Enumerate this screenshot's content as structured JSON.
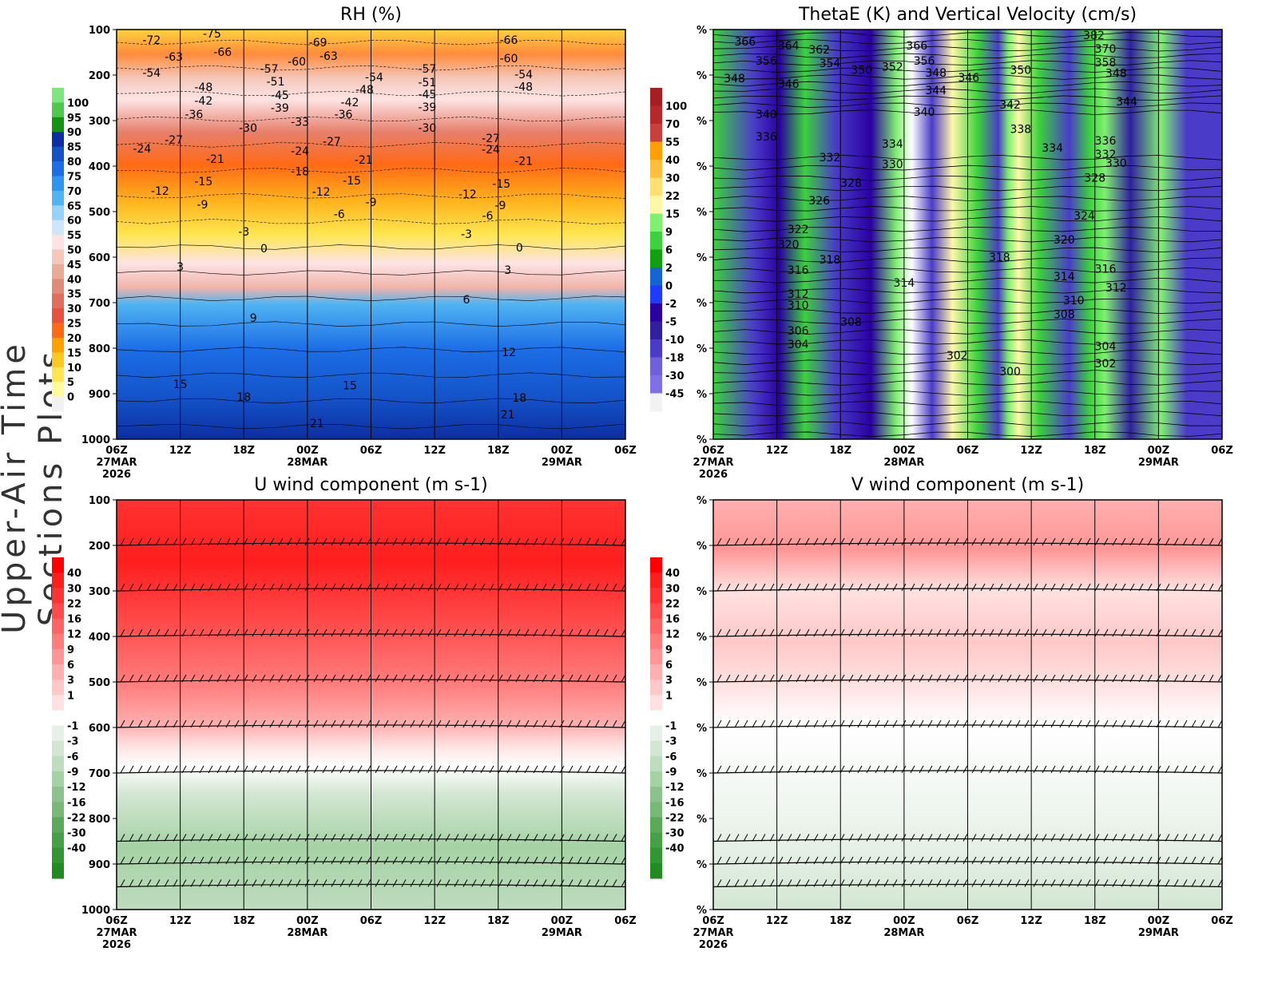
{
  "figure_title": "Upper-Air Time Sections Plots",
  "time_ticks": [
    "06Z",
    "12Z",
    "18Z",
    "00Z",
    "06Z",
    "12Z",
    "18Z",
    "00Z",
    "06Z"
  ],
  "date_labels": [
    {
      "tick": 0,
      "lines": [
        "27MAR",
        "2026"
      ]
    },
    {
      "tick": 3,
      "lines": [
        "28MAR"
      ]
    },
    {
      "tick": 7,
      "lines": [
        "29MAR"
      ]
    }
  ],
  "chart_data": [
    {
      "id": "rh",
      "type": "heatmap",
      "title": "RH (%)",
      "xlim_hours": [
        0,
        48
      ],
      "ylim_hPa": [
        1000,
        100
      ],
      "y_ticks": [
        "100",
        "200",
        "300",
        "400",
        "500",
        "600",
        "700",
        "800",
        "900",
        "1000"
      ],
      "colorbar": {
        "levels": [
          "100",
          "95",
          "90",
          "85",
          "80",
          "75",
          "70",
          "65",
          "60",
          "55",
          "50",
          "45",
          "40",
          "35",
          "30",
          "25",
          "20",
          "15",
          "10",
          "5",
          "0"
        ],
        "colors": [
          "#7ee67e",
          "#4ec84e",
          "#129612",
          "#0c2ea0",
          "#1452c8",
          "#1c6ee6",
          "#2c96f0",
          "#50b4f2",
          "#96d2fa",
          "#cde6fa",
          "#fde4e4",
          "#f5c8bc",
          "#ebaa98",
          "#e08c78",
          "#e0705c",
          "#e6523c",
          "#ff6a14",
          "#ffa200",
          "#ffc81e",
          "#ffe650",
          "#fffa9c",
          "#f2f2f2"
        ]
      },
      "contour_labels": [
        {
          "t": 3.3,
          "p": 123,
          "v": "-72"
        },
        {
          "t": 9,
          "p": 109,
          "v": "-75"
        },
        {
          "t": 19,
          "p": 128,
          "v": "-69"
        },
        {
          "t": 37,
          "p": 123,
          "v": "-66"
        },
        {
          "t": 5.4,
          "p": 160,
          "v": "-63"
        },
        {
          "t": 10,
          "p": 149,
          "v": "-66"
        },
        {
          "t": 20,
          "p": 158,
          "v": "-63"
        },
        {
          "t": 17,
          "p": 170,
          "v": "-60"
        },
        {
          "t": 37,
          "p": 163,
          "v": "-60"
        },
        {
          "t": 3.3,
          "p": 195,
          "v": "-54"
        },
        {
          "t": 14.4,
          "p": 186,
          "v": "-57"
        },
        {
          "t": 15,
          "p": 214,
          "v": "-51"
        },
        {
          "t": 24.3,
          "p": 204,
          "v": "-54"
        },
        {
          "t": 29.3,
          "p": 186,
          "v": "-57"
        },
        {
          "t": 29.3,
          "p": 216,
          "v": "-51"
        },
        {
          "t": 38.4,
          "p": 198,
          "v": "-54"
        },
        {
          "t": 8.2,
          "p": 226,
          "v": "-48"
        },
        {
          "t": 23.4,
          "p": 232,
          "v": "-48"
        },
        {
          "t": 38.4,
          "p": 225,
          "v": "-48"
        },
        {
          "t": 15.4,
          "p": 244,
          "v": "-45"
        },
        {
          "t": 29.3,
          "p": 242,
          "v": "-45"
        },
        {
          "t": 8.2,
          "p": 256,
          "v": "-42"
        },
        {
          "t": 22,
          "p": 260,
          "v": "-42"
        },
        {
          "t": 15.4,
          "p": 272,
          "v": "-39"
        },
        {
          "t": 29.3,
          "p": 270,
          "v": "-39"
        },
        {
          "t": 7.3,
          "p": 286,
          "v": "-36"
        },
        {
          "t": 21.4,
          "p": 286,
          "v": "-36"
        },
        {
          "t": 17.3,
          "p": 303,
          "v": "-33"
        },
        {
          "t": 12.4,
          "p": 316,
          "v": "-30"
        },
        {
          "t": 29.3,
          "p": 316,
          "v": "-30"
        },
        {
          "t": 5.4,
          "p": 342,
          "v": "-27"
        },
        {
          "t": 20.3,
          "p": 346,
          "v": "-27"
        },
        {
          "t": 35.3,
          "p": 339,
          "v": "-27"
        },
        {
          "t": 2.4,
          "p": 361,
          "v": "-24"
        },
        {
          "t": 17.3,
          "p": 367,
          "v": "-24"
        },
        {
          "t": 35.3,
          "p": 363,
          "v": "-24"
        },
        {
          "t": 9.3,
          "p": 384,
          "v": "-21"
        },
        {
          "t": 23.3,
          "p": 386,
          "v": "-21"
        },
        {
          "t": 38.4,
          "p": 389,
          "v": "-21"
        },
        {
          "t": 17.3,
          "p": 411,
          "v": "-18"
        },
        {
          "t": 8.2,
          "p": 433,
          "v": "-15"
        },
        {
          "t": 22.2,
          "p": 432,
          "v": "-15"
        },
        {
          "t": 36.3,
          "p": 439,
          "v": "-15"
        },
        {
          "t": 4.1,
          "p": 454,
          "v": "-12"
        },
        {
          "t": 19.3,
          "p": 456,
          "v": "-12"
        },
        {
          "t": 33.1,
          "p": 461,
          "v": "-12"
        },
        {
          "t": 8.1,
          "p": 484,
          "v": "-9"
        },
        {
          "t": 24,
          "p": 479,
          "v": "-9"
        },
        {
          "t": 36.2,
          "p": 486,
          "v": "-9"
        },
        {
          "t": 21,
          "p": 505,
          "v": "-6"
        },
        {
          "t": 35,
          "p": 509,
          "v": "-6"
        },
        {
          "t": 12,
          "p": 544,
          "v": "-3"
        },
        {
          "t": 33,
          "p": 549,
          "v": "-3"
        },
        {
          "t": 13.9,
          "p": 581,
          "v": "0"
        },
        {
          "t": 38,
          "p": 579,
          "v": "0"
        },
        {
          "t": 6,
          "p": 621,
          "v": "3"
        },
        {
          "t": 36.9,
          "p": 628,
          "v": "3"
        },
        {
          "t": 33,
          "p": 693,
          "v": "6"
        },
        {
          "t": 12.9,
          "p": 733,
          "v": "9"
        },
        {
          "t": 37,
          "p": 809,
          "v": "12"
        },
        {
          "t": 6,
          "p": 879,
          "v": "15"
        },
        {
          "t": 22,
          "p": 882,
          "v": "15"
        },
        {
          "t": 12,
          "p": 907,
          "v": "18"
        },
        {
          "t": 38,
          "p": 909,
          "v": "18"
        },
        {
          "t": 18.9,
          "p": 965,
          "v": "21"
        },
        {
          "t": 36.9,
          "p": 946,
          "v": "21"
        }
      ]
    },
    {
      "id": "thetae",
      "type": "heatmap",
      "title": "ThetaE (K) and Vertical Velocity (cm/s)",
      "xlim_hours": [
        0,
        48
      ],
      "ylim_hPa": [
        1000,
        100
      ],
      "y_ticks": [
        "%",
        "%",
        "%",
        "%",
        "%",
        "%",
        "%",
        "%",
        "%",
        "%"
      ],
      "colorbar": {
        "levels": [
          "100",
          "70",
          "55",
          "40",
          "30",
          "22",
          "15",
          "9",
          "6",
          "2",
          "0",
          "-2",
          "-5",
          "-10",
          "-18",
          "-30",
          "-45"
        ],
        "colors": [
          "#a51e22",
          "#b8282a",
          "#c8403c",
          "#ffa000",
          "#ffbe3c",
          "#ffe070",
          "#fff7a8",
          "#80f070",
          "#3cd23c",
          "#10a010",
          "#1464d2",
          "#1e3cff",
          "#2a00a0",
          "#3020a0",
          "#4a3cc8",
          "#7060dc",
          "#8070e6",
          "#f2f2f2"
        ]
      },
      "contour_labels": [
        {
          "t": 3,
          "p": 126,
          "v": "366"
        },
        {
          "t": 7.1,
          "p": 135,
          "v": "364"
        },
        {
          "t": 10,
          "p": 144,
          "v": "362"
        },
        {
          "t": 5,
          "p": 168,
          "v": "356"
        },
        {
          "t": 11,
          "p": 174,
          "v": "354"
        },
        {
          "t": 14,
          "p": 189,
          "v": "350"
        },
        {
          "t": 16.9,
          "p": 182,
          "v": "352"
        },
        {
          "t": 19.2,
          "p": 135,
          "v": "366"
        },
        {
          "t": 19.9,
          "p": 168,
          "v": "356"
        },
        {
          "t": 2,
          "p": 207,
          "v": "348"
        },
        {
          "t": 7.1,
          "p": 219,
          "v": "346"
        },
        {
          "t": 21,
          "p": 195,
          "v": "348"
        },
        {
          "t": 24.1,
          "p": 205,
          "v": "346"
        },
        {
          "t": 29,
          "p": 189,
          "v": "350"
        },
        {
          "t": 35.9,
          "p": 112,
          "v": "382"
        },
        {
          "t": 37,
          "p": 142,
          "v": "370"
        },
        {
          "t": 37,
          "p": 172,
          "v": "358"
        },
        {
          "t": 38,
          "p": 196,
          "v": "348"
        },
        {
          "t": 21,
          "p": 233,
          "v": "344"
        },
        {
          "t": 28,
          "p": 265,
          "v": "342"
        },
        {
          "t": 39,
          "p": 258,
          "v": "344"
        },
        {
          "t": 5,
          "p": 286,
          "v": "340"
        },
        {
          "t": 19.9,
          "p": 281,
          "v": "340"
        },
        {
          "t": 29,
          "p": 318,
          "v": "338"
        },
        {
          "t": 5,
          "p": 335,
          "v": "336"
        },
        {
          "t": 16.9,
          "p": 351,
          "v": "334"
        },
        {
          "t": 32,
          "p": 360,
          "v": "334"
        },
        {
          "t": 37,
          "p": 344,
          "v": "336"
        },
        {
          "t": 11,
          "p": 381,
          "v": "332"
        },
        {
          "t": 37,
          "p": 374,
          "v": "332"
        },
        {
          "t": 16.9,
          "p": 396,
          "v": "330"
        },
        {
          "t": 38,
          "p": 393,
          "v": "330"
        },
        {
          "t": 13,
          "p": 437,
          "v": "328"
        },
        {
          "t": 36,
          "p": 425,
          "v": "328"
        },
        {
          "t": 10,
          "p": 475,
          "v": "326"
        },
        {
          "t": 35,
          "p": 509,
          "v": "324"
        },
        {
          "t": 8,
          "p": 539,
          "v": "322"
        },
        {
          "t": 7.1,
          "p": 572,
          "v": "320"
        },
        {
          "t": 33.1,
          "p": 561,
          "v": "320"
        },
        {
          "t": 8,
          "p": 628,
          "v": "316"
        },
        {
          "t": 11,
          "p": 605,
          "v": "318"
        },
        {
          "t": 27,
          "p": 600,
          "v": "318"
        },
        {
          "t": 37,
          "p": 625,
          "v": "316"
        },
        {
          "t": 18,
          "p": 656,
          "v": "314"
        },
        {
          "t": 33.1,
          "p": 642,
          "v": "314"
        },
        {
          "t": 8,
          "p": 681,
          "v": "312"
        },
        {
          "t": 38,
          "p": 667,
          "v": "312"
        },
        {
          "t": 8,
          "p": 705,
          "v": "310"
        },
        {
          "t": 34,
          "p": 695,
          "v": "310"
        },
        {
          "t": 13,
          "p": 742,
          "v": "308"
        },
        {
          "t": 33.1,
          "p": 725,
          "v": "308"
        },
        {
          "t": 8,
          "p": 761,
          "v": "306"
        },
        {
          "t": 8,
          "p": 791,
          "v": "304"
        },
        {
          "t": 37,
          "p": 796,
          "v": "304"
        },
        {
          "t": 23,
          "p": 816,
          "v": "302"
        },
        {
          "t": 37,
          "p": 833,
          "v": "302"
        },
        {
          "t": 28,
          "p": 851,
          "v": "300"
        }
      ]
    },
    {
      "id": "uwind",
      "type": "heatmap",
      "title": "U wind component (m s-1)",
      "xlim_hours": [
        0,
        48
      ],
      "ylim_hPa": [
        1000,
        100
      ],
      "y_ticks": [
        "100",
        "200",
        "300",
        "400",
        "500",
        "600",
        "700",
        "800",
        "900",
        "1000"
      ],
      "barb_levels_hPa": [
        200,
        300,
        400,
        500,
        600,
        700,
        850,
        900,
        950
      ],
      "colorbar": {
        "levels": [
          "40",
          "30",
          "22",
          "16",
          "12",
          "9",
          "6",
          "3",
          "1",
          "",
          "-1",
          "-3",
          "-6",
          "-9",
          "-12",
          "-16",
          "-22",
          "-30",
          "-40"
        ],
        "colors": [
          "#ff0000",
          "#ff1e1e",
          "#ff3232",
          "#ff4b4b",
          "#ff6464",
          "#ff7d7d",
          "#ff9696",
          "#ffafaf",
          "#ffc8c8",
          "#ffe1e1",
          "#ffffff",
          "#e6f0e6",
          "#d2e6d2",
          "#bedcbe",
          "#a5d2a5",
          "#8cc38c",
          "#78b978",
          "#5aaa5a",
          "#46a046",
          "#329632",
          "#1e8c1e"
        ]
      }
    },
    {
      "id": "vwind",
      "type": "heatmap",
      "title": "V wind component (m s-1)",
      "xlim_hours": [
        0,
        48
      ],
      "ylim_hPa": [
        1000,
        100
      ],
      "y_ticks": [
        "%",
        "%",
        "%",
        "%",
        "%",
        "%",
        "%",
        "%",
        "%",
        "%"
      ],
      "barb_levels_hPa": [
        200,
        300,
        400,
        500,
        600,
        700,
        850,
        900,
        950
      ],
      "colorbar": {
        "levels": [
          "40",
          "30",
          "22",
          "16",
          "12",
          "9",
          "6",
          "3",
          "1",
          "",
          "-1",
          "-3",
          "-6",
          "-9",
          "-12",
          "-16",
          "-22",
          "-30",
          "-40"
        ],
        "colors": [
          "#ff0000",
          "#ff1e1e",
          "#ff3232",
          "#ff4b4b",
          "#ff6464",
          "#ff7d7d",
          "#ff9696",
          "#ffafaf",
          "#ffc8c8",
          "#ffe1e1",
          "#ffffff",
          "#e6f0e6",
          "#d2e6d2",
          "#bedcbe",
          "#a5d2a5",
          "#8cc38c",
          "#78b978",
          "#5aaa5a",
          "#46a046",
          "#329632",
          "#1e8c1e"
        ]
      }
    }
  ]
}
